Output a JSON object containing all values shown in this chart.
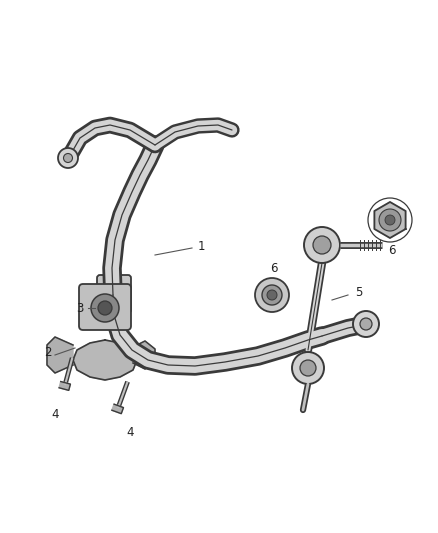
{
  "background_color": "#ffffff",
  "line_color": "#3a3a3a",
  "label_color": "#222222",
  "figsize": [
    4.38,
    5.33
  ],
  "dpi": 100,
  "label_fontsize": 8.5,
  "bar_lw_outer": 14,
  "bar_lw_mid": 10,
  "bar_lw_inner": 0.9,
  "bar_color_outer": "#3a3a3a",
  "bar_color_mid": "#d4d4d4",
  "bar_color_inner": "#3a3a3a"
}
